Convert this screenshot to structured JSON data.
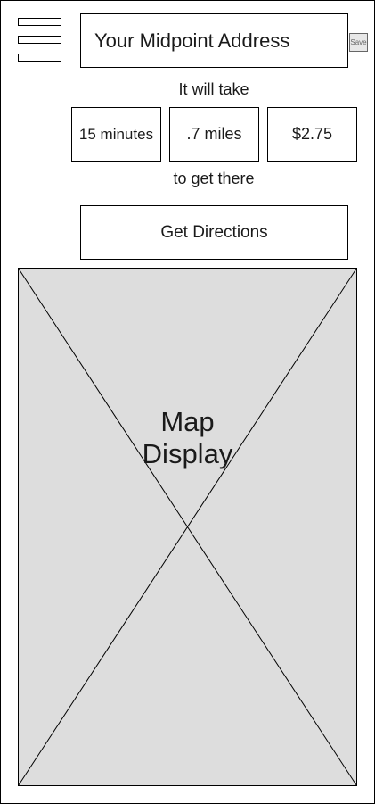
{
  "header": {
    "menu_icon": "hamburger-menu-icon",
    "address": "Your Midpoint Address",
    "save_label": "Save"
  },
  "trip": {
    "intro": "It will take",
    "stats": {
      "time": "15 minutes",
      "distance": ".7 miles",
      "cost": "$2.75"
    },
    "outro": "to get there"
  },
  "actions": {
    "directions_label": "Get Directions"
  },
  "map": {
    "label_line1": "Map",
    "label_line2": "Display",
    "fill_color": "#dddddd"
  }
}
